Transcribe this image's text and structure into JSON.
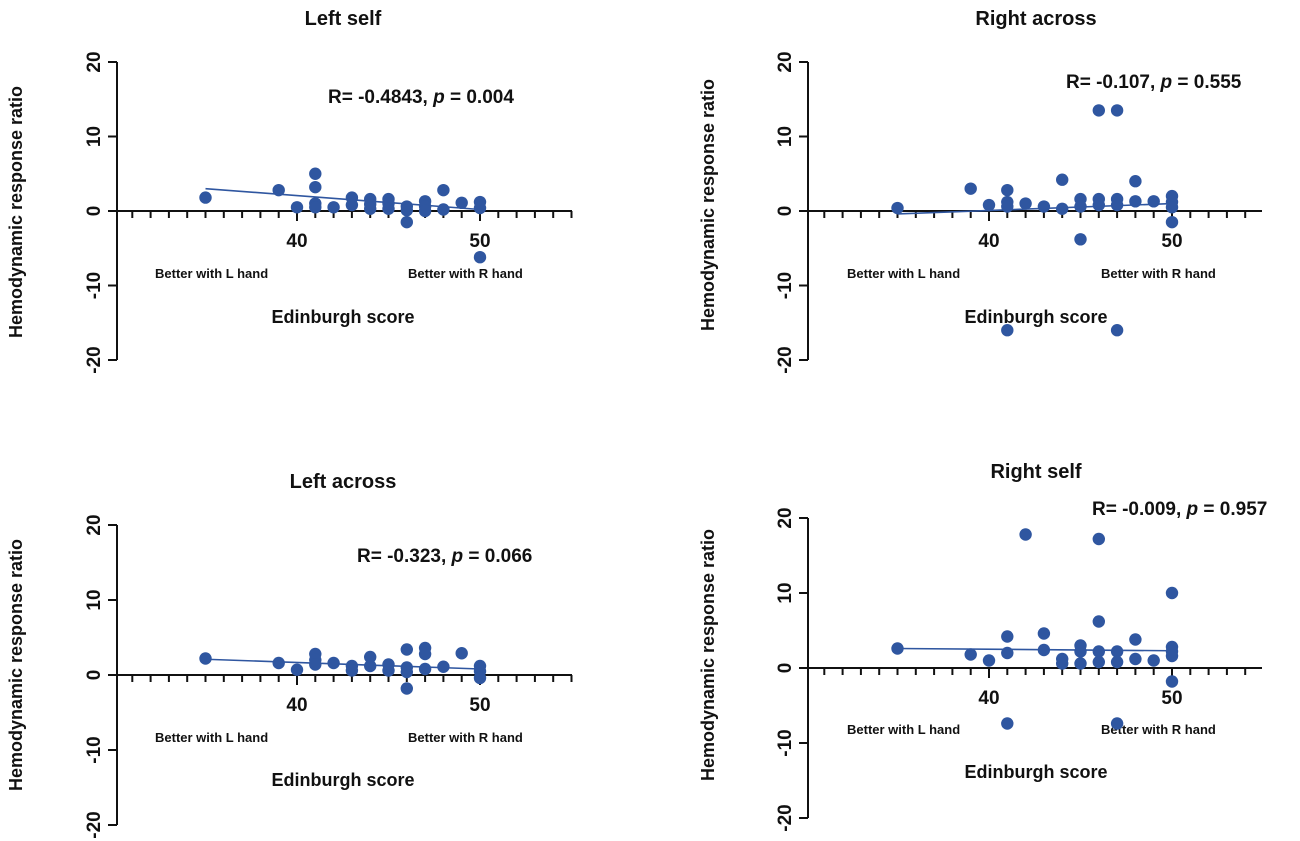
{
  "chart_data": [
    {
      "type": "scatter",
      "title": "Left self",
      "xlabel": "Edinburgh score",
      "ylabel": "Hemodynamic response ratio",
      "xlim": [
        30,
        55
      ],
      "ylim": [
        -20,
        20
      ],
      "x_ticks": [
        40,
        50
      ],
      "y_ticks": [
        20,
        10,
        0,
        -10,
        -20
      ],
      "y_tick_labels": [
        "20",
        "10",
        "0",
        "-10",
        "-20"
      ],
      "x_tick_labels": [
        "40",
        "50"
      ],
      "left_annotation": "Better with L hand",
      "right_annotation": "Better with R hand",
      "stat": {
        "prefix": "R= -0.4843, ",
        "p_label": "p",
        "suffix": " = 0.004"
      },
      "fit": {
        "x": [
          35,
          50
        ],
        "y": [
          3.0,
          0.2
        ]
      },
      "points": [
        {
          "x": 35,
          "y": 1.8
        },
        {
          "x": 39,
          "y": 2.8
        },
        {
          "x": 40,
          "y": 0.5
        },
        {
          "x": 41,
          "y": 5.0
        },
        {
          "x": 41,
          "y": 3.2
        },
        {
          "x": 41,
          "y": 1.0
        },
        {
          "x": 41,
          "y": 0.5
        },
        {
          "x": 42,
          "y": 0.5
        },
        {
          "x": 43,
          "y": 1.8
        },
        {
          "x": 43,
          "y": 0.8
        },
        {
          "x": 44,
          "y": 1.6
        },
        {
          "x": 44,
          "y": 0.9
        },
        {
          "x": 44,
          "y": 0.3
        },
        {
          "x": 45,
          "y": 1.6
        },
        {
          "x": 45,
          "y": 1.0
        },
        {
          "x": 45,
          "y": 0.3
        },
        {
          "x": 46,
          "y": 0.6
        },
        {
          "x": 46,
          "y": 0.1
        },
        {
          "x": 46,
          "y": -1.5
        },
        {
          "x": 47,
          "y": 1.3
        },
        {
          "x": 47,
          "y": 0.6
        },
        {
          "x": 47,
          "y": 0.0
        },
        {
          "x": 48,
          "y": 2.8
        },
        {
          "x": 48,
          "y": 0.2
        },
        {
          "x": 49,
          "y": 1.1
        },
        {
          "x": 50,
          "y": 1.2
        },
        {
          "x": 50,
          "y": 0.4
        },
        {
          "x": 50,
          "y": -6.2
        }
      ]
    },
    {
      "type": "scatter",
      "title": "Right across",
      "xlabel": "Edinburgh score",
      "ylabel": "Hemodynamic response ratio",
      "xlim": [
        30,
        55
      ],
      "ylim": [
        -20,
        20
      ],
      "x_ticks": [
        40,
        50
      ],
      "y_ticks": [
        20,
        10,
        0,
        -10,
        -20
      ],
      "y_tick_labels": [
        "20",
        "10",
        "0",
        "-10",
        "-20"
      ],
      "x_tick_labels": [
        "40",
        "50"
      ],
      "left_annotation": "Better with L hand",
      "right_annotation": "Better with R hand",
      "stat": {
        "prefix": "R= -0.107, ",
        "p_label": "p",
        "suffix": " = 0.555"
      },
      "fit": {
        "x": [
          35,
          50
        ],
        "y": [
          -0.4,
          1.0
        ]
      },
      "points": [
        {
          "x": 35,
          "y": 0.4
        },
        {
          "x": 39,
          "y": 3.0
        },
        {
          "x": 40,
          "y": 0.8
        },
        {
          "x": 41,
          "y": 2.8
        },
        {
          "x": 41,
          "y": 1.2
        },
        {
          "x": 41,
          "y": 0.6
        },
        {
          "x": 41,
          "y": -16.0
        },
        {
          "x": 42,
          "y": 1.0
        },
        {
          "x": 43,
          "y": 0.6
        },
        {
          "x": 44,
          "y": 4.2
        },
        {
          "x": 44,
          "y": 0.3
        },
        {
          "x": 45,
          "y": 1.6
        },
        {
          "x": 45,
          "y": 0.6
        },
        {
          "x": 45,
          "y": -3.8
        },
        {
          "x": 46,
          "y": 13.5
        },
        {
          "x": 46,
          "y": 1.6
        },
        {
          "x": 46,
          "y": 0.8
        },
        {
          "x": 47,
          "y": 13.5
        },
        {
          "x": 47,
          "y": 1.6
        },
        {
          "x": 47,
          "y": 0.8
        },
        {
          "x": 47,
          "y": -16.0
        },
        {
          "x": 48,
          "y": 4.0
        },
        {
          "x": 48,
          "y": 1.3
        },
        {
          "x": 49,
          "y": 1.3
        },
        {
          "x": 50,
          "y": 2.0
        },
        {
          "x": 50,
          "y": 1.2
        },
        {
          "x": 50,
          "y": 0.5
        },
        {
          "x": 50,
          "y": -1.5
        }
      ]
    },
    {
      "type": "scatter",
      "title": "Left across",
      "xlabel": "Edinburgh score",
      "ylabel": "Hemodynamic response ratio",
      "xlim": [
        30,
        55
      ],
      "ylim": [
        -20,
        20
      ],
      "x_ticks": [
        40,
        50
      ],
      "y_ticks": [
        20,
        10,
        0,
        -10,
        -20
      ],
      "y_tick_labels": [
        "20",
        "10",
        "0",
        "-10",
        "-20"
      ],
      "x_tick_labels": [
        "40",
        "50"
      ],
      "left_annotation": "Better with L hand",
      "right_annotation": "Better with R hand",
      "stat": {
        "prefix": "R= -0.323, ",
        "p_label": "p",
        "suffix": " = 0.066"
      },
      "fit": {
        "x": [
          35,
          50
        ],
        "y": [
          2.1,
          0.8
        ]
      },
      "points": [
        {
          "x": 35,
          "y": 2.2
        },
        {
          "x": 39,
          "y": 1.6
        },
        {
          "x": 40,
          "y": 0.7
        },
        {
          "x": 41,
          "y": 2.8
        },
        {
          "x": 41,
          "y": 2.0
        },
        {
          "x": 41,
          "y": 1.4
        },
        {
          "x": 42,
          "y": 1.6
        },
        {
          "x": 43,
          "y": 1.2
        },
        {
          "x": 43,
          "y": 0.6
        },
        {
          "x": 44,
          "y": 2.4
        },
        {
          "x": 44,
          "y": 1.2
        },
        {
          "x": 45,
          "y": 1.4
        },
        {
          "x": 45,
          "y": 0.6
        },
        {
          "x": 46,
          "y": 3.4
        },
        {
          "x": 46,
          "y": 1.0
        },
        {
          "x": 46,
          "y": 0.4
        },
        {
          "x": 46,
          "y": -1.8
        },
        {
          "x": 47,
          "y": 3.6
        },
        {
          "x": 47,
          "y": 2.8
        },
        {
          "x": 47,
          "y": 0.8
        },
        {
          "x": 48,
          "y": 1.1
        },
        {
          "x": 49,
          "y": 2.9
        },
        {
          "x": 50,
          "y": 1.2
        },
        {
          "x": 50,
          "y": 0.5
        },
        {
          "x": 50,
          "y": -0.4
        }
      ]
    },
    {
      "type": "scatter",
      "title": "Right self",
      "xlabel": "Edinburgh score",
      "ylabel": "Hemodynamic response ratio",
      "xlim": [
        30,
        55
      ],
      "ylim": [
        -20,
        20
      ],
      "x_ticks": [
        40,
        50
      ],
      "y_ticks": [
        20,
        10,
        0,
        -10,
        -20
      ],
      "y_tick_labels": [
        "20",
        "10",
        "0",
        "-10",
        "-20"
      ],
      "x_tick_labels": [
        "40",
        "50"
      ],
      "left_annotation": "Better with L hand",
      "right_annotation": "Better with R hand",
      "stat": {
        "prefix": "R= -0.009, ",
        "p_label": "p",
        "suffix": " = 0.957"
      },
      "fit": {
        "x": [
          35,
          50
        ],
        "y": [
          2.6,
          2.3
        ]
      },
      "points": [
        {
          "x": 35,
          "y": 2.6
        },
        {
          "x": 39,
          "y": 1.8
        },
        {
          "x": 40,
          "y": 1.0
        },
        {
          "x": 41,
          "y": 4.2
        },
        {
          "x": 41,
          "y": 2.0
        },
        {
          "x": 41,
          "y": -7.4
        },
        {
          "x": 42,
          "y": 17.8
        },
        {
          "x": 43,
          "y": 4.6
        },
        {
          "x": 43,
          "y": 2.4
        },
        {
          "x": 44,
          "y": 1.2
        },
        {
          "x": 44,
          "y": 0.6
        },
        {
          "x": 45,
          "y": 3.0
        },
        {
          "x": 45,
          "y": 2.2
        },
        {
          "x": 45,
          "y": 0.6
        },
        {
          "x": 46,
          "y": 17.2
        },
        {
          "x": 46,
          "y": 6.2
        },
        {
          "x": 46,
          "y": 2.2
        },
        {
          "x": 46,
          "y": 0.8
        },
        {
          "x": 47,
          "y": 2.2
        },
        {
          "x": 47,
          "y": 0.8
        },
        {
          "x": 47,
          "y": -7.4
        },
        {
          "x": 48,
          "y": 3.8
        },
        {
          "x": 48,
          "y": 1.2
        },
        {
          "x": 49,
          "y": 1.0
        },
        {
          "x": 50,
          "y": 10.0
        },
        {
          "x": 50,
          "y": 2.8
        },
        {
          "x": 50,
          "y": 2.2
        },
        {
          "x": 50,
          "y": 1.6
        },
        {
          "x": 50,
          "y": -1.8
        }
      ]
    }
  ]
}
